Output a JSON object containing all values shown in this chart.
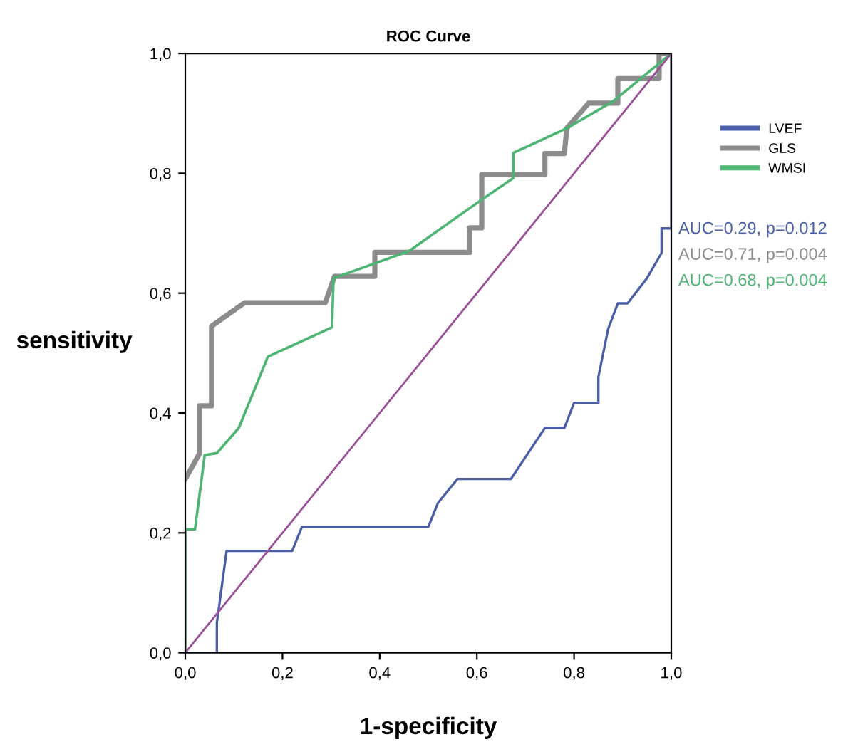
{
  "chart_data": {
    "type": "line",
    "title": "ROC Curve",
    "xlabel": "1-specificity",
    "ylabel": "sensitivity",
    "xlim": [
      0,
      1
    ],
    "ylim": [
      0,
      1
    ],
    "xticks": [
      {
        "value": 0,
        "label": "0,0"
      },
      {
        "value": 0.2,
        "label": "0,2"
      },
      {
        "value": 0.4,
        "label": "0,4"
      },
      {
        "value": 0.6,
        "label": "0,6"
      },
      {
        "value": 0.8,
        "label": "0,8"
      },
      {
        "value": 1,
        "label": "1,0"
      }
    ],
    "yticks": [
      {
        "value": 0,
        "label": "0,0"
      },
      {
        "value": 0.2,
        "label": "0,2"
      },
      {
        "value": 0.4,
        "label": "0,4"
      },
      {
        "value": 0.6,
        "label": "0,6"
      },
      {
        "value": 0.8,
        "label": "0,8"
      },
      {
        "value": 1,
        "label": "1,0"
      }
    ],
    "legend": "right",
    "grid": false,
    "series": [
      {
        "name": "LVEF",
        "color": "#4a5fa8",
        "x": [
          0,
          0.065,
          0.065,
          0.085,
          0.22,
          0.24,
          0.5,
          0.52,
          0.56,
          0.67,
          0.74,
          0.78,
          0.8,
          0.85,
          0.85,
          0.87,
          0.89,
          0.91,
          0.95,
          0.98,
          0.98,
          1.0,
          1.0
        ],
        "values": [
          0,
          0,
          0.05,
          0.17,
          0.17,
          0.21,
          0.21,
          0.25,
          0.29,
          0.29,
          0.375,
          0.375,
          0.417,
          0.417,
          0.46,
          0.54,
          0.583,
          0.583,
          0.625,
          0.667,
          0.708,
          0.708,
          1.0
        ]
      },
      {
        "name": "GLS",
        "color": "#8c8c8c",
        "x": [
          0,
          0.029,
          0.029,
          0.054,
          0.054,
          0.122,
          0.288,
          0.307,
          0.39,
          0.39,
          0.585,
          0.585,
          0.61,
          0.61,
          0.74,
          0.74,
          0.78,
          0.785,
          0.83,
          0.89,
          0.89,
          0.975,
          0.975,
          1.0
        ],
        "values": [
          0.29,
          0.332,
          0.412,
          0.412,
          0.545,
          0.584,
          0.584,
          0.628,
          0.628,
          0.668,
          0.668,
          0.709,
          0.709,
          0.798,
          0.798,
          0.833,
          0.833,
          0.875,
          0.917,
          0.917,
          0.958,
          0.958,
          1.0,
          1.0
        ]
      },
      {
        "name": "WMSI",
        "color": "#4cb572",
        "x": [
          0,
          0,
          0.02,
          0.04,
          0.065,
          0.11,
          0.17,
          0.302,
          0.305,
          0.46,
          0.61,
          0.675,
          0.675,
          0.785,
          0.88,
          1.0
        ],
        "values": [
          0,
          0.206,
          0.206,
          0.33,
          0.333,
          0.375,
          0.494,
          0.543,
          0.625,
          0.67,
          0.756,
          0.792,
          0.834,
          0.875,
          0.92,
          1.0
        ]
      },
      {
        "color": "#9b4f96",
        "x": [
          0,
          1
        ],
        "values": [
          0,
          1
        ]
      }
    ],
    "annotations": [
      "AUC=0.29, p=0.012",
      "AUC=0.71, p=0.004",
      "AUC=0.68, p=0.004"
    ]
  }
}
